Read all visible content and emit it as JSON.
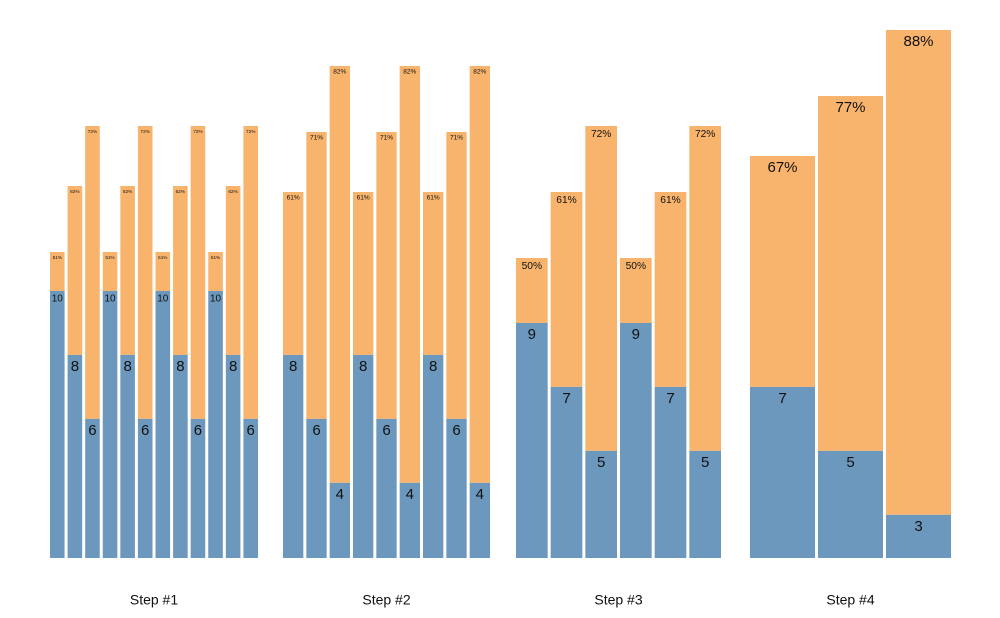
{
  "chart_data": [
    {
      "type": "bar",
      "xlabel": "Step #1",
      "ylim": [
        0,
        93
      ],
      "y2lim": [
        1.65,
        19.1
      ],
      "series": [
        {
          "color": "#6d98bd",
          "axis": "y2",
          "values": [
            10,
            8,
            6,
            10,
            8,
            6,
            10,
            8,
            6,
            10,
            8,
            6
          ]
        },
        {
          "color": "#f8b46c",
          "values": [
            51,
            62,
            72,
            51,
            62,
            72,
            51,
            62,
            72,
            51,
            62,
            72
          ],
          "value_labels": [
            "51%",
            "62%",
            "72%",
            "51%",
            "62%",
            "72%",
            "51%",
            "62%",
            "72%",
            "51%",
            "62%",
            "72%"
          ]
        }
      ]
    },
    {
      "type": "bar",
      "xlabel": "Step #2",
      "ylim": [
        0,
        93
      ],
      "y2lim": [
        1.65,
        19.1
      ],
      "series": [
        {
          "color": "#6d98bd",
          "axis": "y2",
          "values": [
            8,
            6,
            4,
            8,
            6,
            4,
            8,
            6,
            4
          ]
        },
        {
          "color": "#f8b46c",
          "values": [
            61,
            71,
            82,
            61,
            71,
            82,
            61,
            71,
            82
          ],
          "value_labels": [
            "61%",
            "71%",
            "82%",
            "61%",
            "71%",
            "82%",
            "61%",
            "71%",
            "82%"
          ]
        }
      ]
    },
    {
      "type": "bar",
      "xlabel": "Step #3",
      "ylim": [
        0,
        93
      ],
      "y2lim": [
        1.65,
        19.1
      ],
      "series": [
        {
          "color": "#6d98bd",
          "axis": "y2",
          "values": [
            9,
            7,
            5,
            9,
            7,
            5
          ]
        },
        {
          "color": "#f8b46c",
          "values": [
            50,
            61,
            72,
            50,
            61,
            72
          ],
          "value_labels": [
            "50%",
            "61%",
            "72%",
            "50%",
            "61%",
            "72%"
          ]
        }
      ]
    },
    {
      "type": "bar",
      "xlabel": "Step #4",
      "ylim": [
        0,
        93
      ],
      "y2lim": [
        1.65,
        19.1
      ],
      "series": [
        {
          "color": "#6d98bd",
          "axis": "y2",
          "values": [
            7,
            5,
            3
          ]
        },
        {
          "color": "#f8b46c",
          "values": [
            67,
            77,
            88
          ],
          "value_labels": [
            "67%",
            "77%",
            "88%"
          ]
        }
      ]
    }
  ]
}
